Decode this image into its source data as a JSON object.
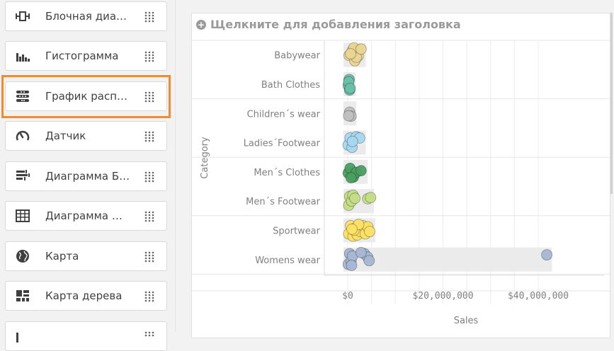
{
  "chart_list": [
    {
      "label": "Блочная диа…",
      "icon": "block-diagram-icon"
    },
    {
      "label": "Гистограмма",
      "icon": "histogram-icon"
    },
    {
      "label": "График расп…",
      "icon": "distribution-plot-icon",
      "selected": true
    },
    {
      "label": "Датчик",
      "icon": "gauge-icon"
    },
    {
      "label": "Диаграмма Б…",
      "icon": "bullet-chart-icon"
    },
    {
      "label": "Диаграмма …",
      "icon": "grid-chart-icon"
    },
    {
      "label": "Карта",
      "icon": "globe-icon"
    },
    {
      "label": "Карта дерева",
      "icon": "treemap-icon"
    }
  ],
  "colors": {
    "selected_outline": "#f28a2e",
    "Babywear": "#ead692",
    "Bath Clothes": "#6cc0a8",
    "Children´s wear": "#c0c0c0",
    "Ladies´Footwear": "#a8d8f0",
    "Men´s Clothes": "#4a9e62",
    "Men´s Footwear": "#c4dd86",
    "Sportwear": "#fde165",
    "Womens wear": "#a6b7d4"
  },
  "chart": {
    "add_title": "Щелкните для добавления заголовка",
    "xlabel": "Sales",
    "ylabel": "Category"
  },
  "chart_data": {
    "type": "scatter",
    "xlabel": "Sales",
    "ylabel": "Category",
    "xlim": [
      -3000000,
      43500000
    ],
    "x_ticks": [
      "$0",
      "$20,000,000",
      "$40,000,000"
    ],
    "x_tick_values": [
      0,
      20000000,
      40000000
    ],
    "categories": [
      "Babywear",
      "Bath Clothes",
      "Children´s wear",
      "Ladies´Footwear",
      "Men´s Clothes",
      "Men´s Footwear",
      "Sportwear",
      "Womens wear"
    ],
    "range_bars": [
      {
        "category": "Babywear",
        "min": 0,
        "max": 2900000
      },
      {
        "category": "Bath Clothes",
        "min": 0,
        "max": 800000
      },
      {
        "category": "Children´s wear",
        "min": 0,
        "max": 900000
      },
      {
        "category": "Ladies´Footwear",
        "min": 0,
        "max": 2900000
      },
      {
        "category": "Men´s Clothes",
        "min": 0,
        "max": 3300000
      },
      {
        "category": "Men´s Footwear",
        "min": 0,
        "max": 4600000
      },
      {
        "category": "Sportwear",
        "min": 0,
        "max": 4900000
      },
      {
        "category": "Womens wear",
        "min": 0,
        "max": 42000000
      }
    ],
    "series": [
      {
        "category": "Babywear",
        "points": [
          [
            300000,
            0.02
          ],
          [
            1000000,
            -0.2
          ],
          [
            1500000,
            0.25
          ],
          [
            2000000,
            -0.15
          ],
          [
            2200000,
            0.05
          ],
          [
            1800000,
            0.1
          ],
          [
            1300000,
            -0.3
          ],
          [
            2800000,
            -0.25
          ],
          [
            600000,
            -0.05
          ]
        ]
      },
      {
        "category": "Bath Clothes",
        "points": [
          [
            100000,
            0.05
          ],
          [
            300000,
            -0.2
          ],
          [
            400000,
            0.25
          ],
          [
            200000,
            -0.1
          ],
          [
            500000,
            0.18
          ]
        ]
      },
      {
        "category": "Children´s wear",
        "points": [
          [
            400000,
            -0.05
          ],
          [
            700000,
            0.12
          ],
          [
            200000,
            0.1
          ]
        ]
      },
      {
        "category": "Ladies´Footwear",
        "points": [
          [
            100000,
            0.1
          ],
          [
            500000,
            -0.2
          ],
          [
            900000,
            0.2
          ],
          [
            1800000,
            -0.25
          ],
          [
            2500000,
            -0.2
          ],
          [
            1000000,
            -0.05
          ]
        ]
      },
      {
        "category": "Men´s Clothes",
        "points": [
          [
            100000,
            0.05
          ],
          [
            500000,
            -0.15
          ],
          [
            1200000,
            0.22
          ],
          [
            1800000,
            0.02
          ],
          [
            2800000,
            -0.05
          ],
          [
            700000,
            0.25
          ]
        ]
      },
      {
        "category": "Men´s Footwear",
        "points": [
          [
            200000,
            0.18
          ],
          [
            400000,
            -0.2
          ],
          [
            800000,
            0.0
          ],
          [
            1100000,
            -0.25
          ],
          [
            4200000,
            -0.1
          ],
          [
            4800000,
            -0.15
          ],
          [
            1500000,
            -0.12
          ]
        ]
      },
      {
        "category": "Sportwear",
        "points": [
          [
            200000,
            0.15
          ],
          [
            600000,
            -0.2
          ],
          [
            1100000,
            0.25
          ],
          [
            1600000,
            -0.1
          ],
          [
            2000000,
            0.2
          ],
          [
            2700000,
            0.05
          ],
          [
            3200000,
            -0.2
          ],
          [
            3700000,
            0.15
          ],
          [
            4200000,
            -0.15
          ],
          [
            4600000,
            0.05
          ],
          [
            1300000,
            0.0
          ],
          [
            2300000,
            -0.25
          ],
          [
            900000,
            -0.05
          ]
        ]
      },
      {
        "category": "Womens wear",
        "points": [
          [
            100000,
            0.2
          ],
          [
            400000,
            -0.25
          ],
          [
            700000,
            0.05
          ],
          [
            1000000,
            -0.15
          ],
          [
            800000,
            0.25
          ],
          [
            3500000,
            -0.25
          ],
          [
            4200000,
            -0.1
          ],
          [
            4500000,
            0.05
          ],
          [
            2800000,
            -0.3
          ],
          [
            41800000,
            -0.2
          ]
        ]
      }
    ]
  }
}
